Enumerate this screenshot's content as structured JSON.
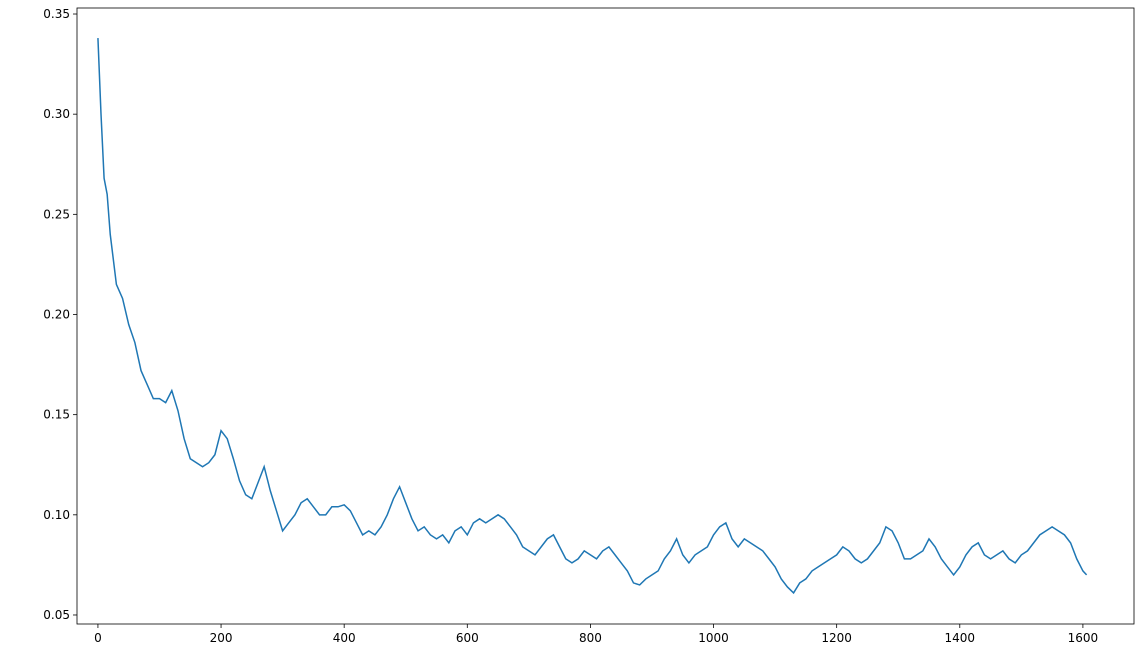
{
  "chart_data": {
    "type": "line",
    "x": [
      0,
      5,
      10,
      15,
      20,
      30,
      40,
      50,
      60,
      70,
      80,
      90,
      100,
      110,
      120,
      130,
      140,
      150,
      160,
      170,
      180,
      190,
      200,
      210,
      220,
      230,
      240,
      250,
      260,
      270,
      280,
      290,
      300,
      310,
      320,
      330,
      340,
      350,
      360,
      370,
      380,
      390,
      400,
      410,
      420,
      430,
      440,
      450,
      460,
      470,
      480,
      490,
      500,
      510,
      520,
      530,
      540,
      550,
      560,
      570,
      580,
      590,
      600,
      610,
      620,
      630,
      640,
      650,
      660,
      670,
      680,
      690,
      700,
      710,
      720,
      730,
      740,
      750,
      760,
      770,
      780,
      790,
      800,
      810,
      820,
      830,
      840,
      850,
      860,
      870,
      880,
      890,
      900,
      910,
      920,
      930,
      940,
      950,
      960,
      970,
      980,
      990,
      1000,
      1010,
      1020,
      1030,
      1040,
      1050,
      1060,
      1070,
      1080,
      1090,
      1100,
      1110,
      1120,
      1130,
      1140,
      1150,
      1160,
      1170,
      1180,
      1190,
      1200,
      1210,
      1220,
      1230,
      1240,
      1250,
      1260,
      1270,
      1280,
      1290,
      1300,
      1310,
      1320,
      1330,
      1340,
      1350,
      1360,
      1370,
      1380,
      1390,
      1400,
      1410,
      1420,
      1430,
      1440,
      1450,
      1460,
      1470,
      1480,
      1490,
      1500,
      1510,
      1520,
      1530,
      1540,
      1550,
      1560,
      1570,
      1580,
      1590,
      1600,
      1606
    ],
    "series": [
      {
        "color": "#1f77b4",
        "values": [
          0.338,
          0.3,
          0.268,
          0.26,
          0.24,
          0.215,
          0.208,
          0.195,
          0.186,
          0.172,
          0.165,
          0.158,
          0.158,
          0.156,
          0.162,
          0.152,
          0.138,
          0.128,
          0.126,
          0.124,
          0.126,
          0.13,
          0.142,
          0.138,
          0.128,
          0.117,
          0.11,
          0.108,
          0.116,
          0.124,
          0.112,
          0.102,
          0.092,
          0.096,
          0.1,
          0.106,
          0.108,
          0.104,
          0.1,
          0.1,
          0.104,
          0.104,
          0.105,
          0.102,
          0.096,
          0.09,
          0.092,
          0.09,
          0.094,
          0.1,
          0.108,
          0.114,
          0.106,
          0.098,
          0.092,
          0.094,
          0.09,
          0.088,
          0.09,
          0.086,
          0.092,
          0.094,
          0.09,
          0.096,
          0.098,
          0.096,
          0.098,
          0.1,
          0.098,
          0.094,
          0.09,
          0.084,
          0.082,
          0.08,
          0.084,
          0.088,
          0.09,
          0.084,
          0.078,
          0.076,
          0.078,
          0.082,
          0.08,
          0.078,
          0.082,
          0.084,
          0.08,
          0.076,
          0.072,
          0.066,
          0.065,
          0.068,
          0.07,
          0.072,
          0.078,
          0.082,
          0.088,
          0.08,
          0.076,
          0.08,
          0.082,
          0.084,
          0.09,
          0.094,
          0.096,
          0.088,
          0.084,
          0.088,
          0.086,
          0.084,
          0.082,
          0.078,
          0.074,
          0.068,
          0.064,
          0.061,
          0.066,
          0.068,
          0.072,
          0.074,
          0.076,
          0.078,
          0.08,
          0.084,
          0.082,
          0.078,
          0.076,
          0.078,
          0.082,
          0.086,
          0.094,
          0.092,
          0.086,
          0.078,
          0.078,
          0.08,
          0.082,
          0.088,
          0.084,
          0.078,
          0.074,
          0.07,
          0.074,
          0.08,
          0.084,
          0.086,
          0.08,
          0.078,
          0.08,
          0.082,
          0.078,
          0.076,
          0.08,
          0.082,
          0.086,
          0.09,
          0.092,
          0.094,
          0.092,
          0.09,
          0.086,
          0.078,
          0.072,
          0.07
        ]
      }
    ],
    "xlim": [
      -34,
      1683
    ],
    "ylim": [
      0.0455,
      0.353
    ],
    "xticks": [
      0,
      200,
      400,
      600,
      800,
      1000,
      1200,
      1400,
      1600
    ],
    "yticks": [
      0.05,
      {
        "value": 0.1,
        "label": "0.10"
      },
      0.15,
      {
        "value": 0.2,
        "label": "0.20"
      },
      0.25,
      {
        "value": 0.3,
        "label": "0.30"
      },
      0.35
    ],
    "grid": false
  }
}
